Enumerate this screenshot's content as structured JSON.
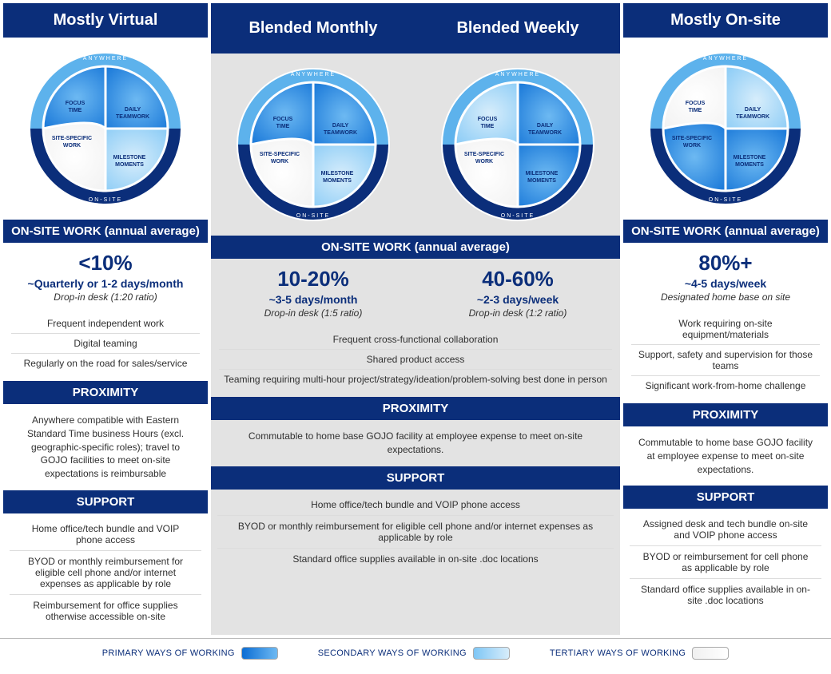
{
  "colors": {
    "darkBlue": "#0b2e7a",
    "greyPanel": "#e3e3e3",
    "primaryGrad": [
      "#0b6dd4",
      "#6db9f2"
    ],
    "secondaryGrad": [
      "#7ec6f5",
      "#d7edfb"
    ],
    "tertiaryGrad": [
      "#f0f0f0",
      "#ffffff"
    ],
    "circleArcTop": "#5db2ec",
    "circleArcBottom": "#0b2e7a"
  },
  "diagramLabels": {
    "top": "ANYWHERE",
    "bottom": "ON-SITE",
    "segments": [
      "FOCUS TIME",
      "DAILY TEAMWORK",
      "MILESTONE MOMENTS",
      "SITE-SPECIFIC WORK"
    ]
  },
  "columns": [
    {
      "title": "Mostly Virtual",
      "segTiers": [
        "primary",
        "primary",
        "secondary",
        "tertiary"
      ],
      "onsiteHeader": "ON-SITE WORK (annual average)",
      "pct": "<10%",
      "freq": "~Quarterly or 1-2 days/month",
      "sub": "Drop-in desk (1:20 ratio)",
      "bullets": [
        "Frequent independent work",
        "Digital teaming",
        "Regularly on the road for sales/service"
      ],
      "proximityHeader": "PROXIMITY",
      "proximity": "Anywhere compatible with Eastern Standard Time business Hours (excl. geographic-specific roles); travel to GOJO facilities to meet on-site expectations is reimbursable",
      "supportHeader": "SUPPORT",
      "support": [
        "Home office/tech bundle and VOIP phone access",
        "BYOD or monthly reimbursement for eligible cell phone and/or internet expenses as applicable by role",
        "Reimbursement for office supplies otherwise accessible on-site"
      ]
    },
    {
      "titles": [
        "Blended Monthly",
        "Blended Weekly"
      ],
      "segTiersA": [
        "primary",
        "primary",
        "secondary",
        "tertiary"
      ],
      "segTiersB": [
        "secondary",
        "primary",
        "primary",
        "tertiary"
      ],
      "onsiteHeader": "ON-SITE WORK (annual average)",
      "stats": [
        {
          "pct": "10-20%",
          "freq": "~3-5 days/month",
          "sub": "Drop-in desk (1:5 ratio)"
        },
        {
          "pct": "40-60%",
          "freq": "~2-3 days/week",
          "sub": "Drop-in desk (1:2 ratio)"
        }
      ],
      "bullets": [
        "Frequent cross-functional collaboration",
        "Shared product access",
        "Teaming requiring multi-hour project/strategy/ideation/problem-solving best done in person"
      ],
      "proximityHeader": "PROXIMITY",
      "proximity": "Commutable to home base GOJO facility at employee expense to meet on-site expectations.",
      "supportHeader": "SUPPORT",
      "support": [
        "Home office/tech bundle and VOIP phone access",
        "BYOD or monthly reimbursement for eligible cell phone and/or internet expenses as applicable by role",
        "Standard office supplies available in on-site .doc locations"
      ]
    },
    {
      "title": "Mostly On-site",
      "segTiers": [
        "tertiary",
        "secondary",
        "primary",
        "primary"
      ],
      "onsiteHeader": "ON-SITE WORK (annual average)",
      "pct": "80%+",
      "freq": "~4-5 days/week",
      "sub": "Designated home base on site",
      "bullets": [
        "Work requiring on-site equipment/materials",
        "Support, safety and supervision for those teams",
        "Significant work-from-home challenge"
      ],
      "proximityHeader": "PROXIMITY",
      "proximity": "Commutable to home base GOJO facility at employee expense to meet on-site expectations.",
      "supportHeader": "SUPPORT",
      "support": [
        "Assigned desk and tech bundle on-site and VOIP phone access",
        "BYOD or reimbursement for cell phone as applicable by role",
        "Standard office supplies available in on-site .doc locations"
      ]
    }
  ],
  "legend": {
    "primary": "PRIMARY WAYS OF WORKING",
    "secondary": "SECONDARY WAYS OF WORKING",
    "tertiary": "TERTIARY WAYS OF WORKING"
  }
}
